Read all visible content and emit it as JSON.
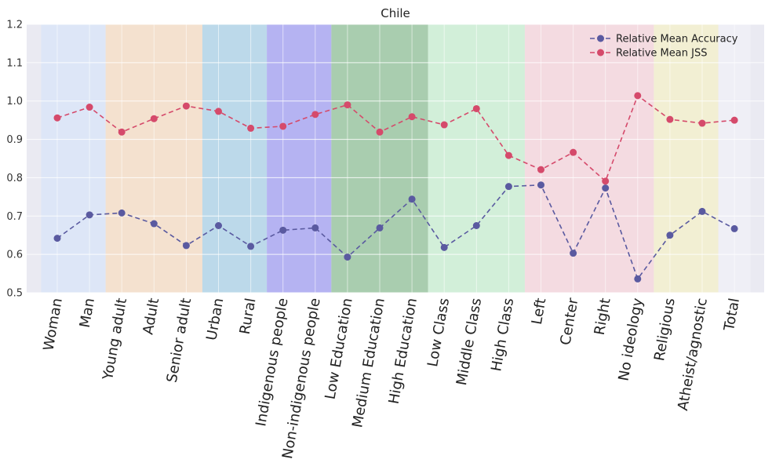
{
  "chart_data": {
    "type": "line",
    "title": "Chile",
    "xlabel": "",
    "ylabel": "",
    "ylim": [
      0.5,
      1.2
    ],
    "yticks": [
      "0.5",
      "0.6",
      "0.7",
      "0.8",
      "0.9",
      "1.0",
      "1.1",
      "1.2"
    ],
    "grid": true,
    "legend_position": "top-right",
    "categories": [
      "Woman",
      "Man",
      "Young adult",
      "Adult",
      "Senior adult",
      "Urban",
      "Rural",
      "Indigenous people",
      "Non-indigenous people",
      "Low Education",
      "Medium Education",
      "High Education",
      "Low Class",
      "Middle Class",
      "High Class",
      "Left",
      "Center",
      "Right",
      "No ideology",
      "Religious",
      "Atheist/agnostic",
      "Total"
    ],
    "series": [
      {
        "name": "Relative Mean Accuracy",
        "color": "#5a5aa0",
        "values": [
          0.642,
          0.703,
          0.708,
          0.68,
          0.623,
          0.675,
          0.621,
          0.663,
          0.669,
          0.593,
          0.669,
          0.744,
          0.618,
          0.675,
          0.777,
          0.781,
          0.603,
          0.773,
          0.536,
          0.65,
          0.712,
          0.667
        ]
      },
      {
        "name": "Relative Mean JSS",
        "color": "#d54a6b",
        "values": [
          0.956,
          0.984,
          0.919,
          0.954,
          0.987,
          0.973,
          0.929,
          0.934,
          0.965,
          0.99,
          0.919,
          0.959,
          0.938,
          0.98,
          0.858,
          0.821,
          0.866,
          0.791,
          1.014,
          0.952,
          0.942,
          0.95
        ]
      }
    ],
    "bands": [
      {
        "group": "gender",
        "start": 0,
        "end": 1,
        "color": "#dde6f7"
      },
      {
        "group": "age",
        "start": 2,
        "end": 4,
        "color": "#f4e1cf"
      },
      {
        "group": "residence",
        "start": 5,
        "end": 6,
        "color": "#bcd9ea"
      },
      {
        "group": "ethnicity",
        "start": 7,
        "end": 8,
        "color": "#b5b3f2"
      },
      {
        "group": "education",
        "start": 9,
        "end": 11,
        "color": "#a9cdaf"
      },
      {
        "group": "class",
        "start": 12,
        "end": 14,
        "color": "#d2efd9"
      },
      {
        "group": "ideology",
        "start": 15,
        "end": 18,
        "color": "#f4dbe1"
      },
      {
        "group": "religion",
        "start": 19,
        "end": 20,
        "color": "#f2efd3"
      },
      {
        "group": "total",
        "start": 21,
        "end": 21,
        "color": "#efeff6"
      }
    ]
  }
}
